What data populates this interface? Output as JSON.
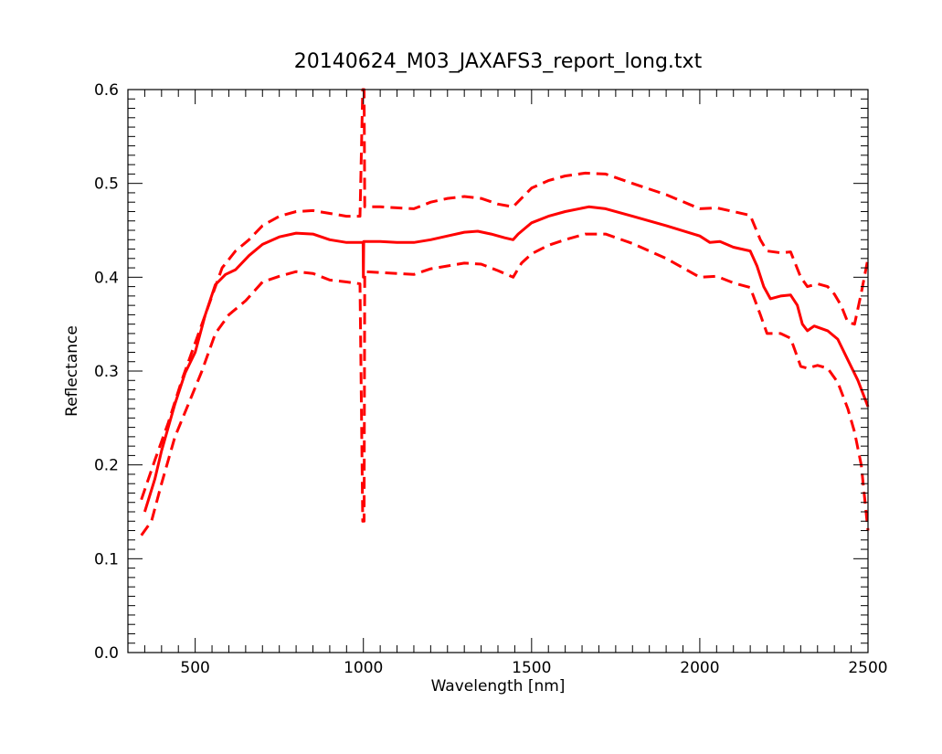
{
  "chart_data": {
    "type": "line",
    "title": "20140624_M03_JAXAFS3_report_long.txt",
    "xlabel": "Wavelength [nm]",
    "ylabel": "Reflectance",
    "xlim": [
      300,
      2500
    ],
    "ylim": [
      0.0,
      0.6
    ],
    "x_ticks": [
      "500",
      "1000",
      "1500",
      "2000",
      "2500"
    ],
    "y_ticks": [
      "0.0",
      "0.1",
      "0.2",
      "0.3",
      "0.4",
      "0.5",
      "0.6"
    ],
    "grid": false,
    "legend": "none",
    "series": [
      {
        "style": "solid",
        "color": "#ff0000",
        "points": [
          [
            350,
            0.15
          ],
          [
            380,
            0.185
          ],
          [
            400,
            0.215
          ],
          [
            440,
            0.265
          ],
          [
            470,
            0.298
          ],
          [
            500,
            0.32
          ],
          [
            530,
            0.36
          ],
          [
            560,
            0.392
          ],
          [
            590,
            0.403
          ],
          [
            620,
            0.408
          ],
          [
            660,
            0.423
          ],
          [
            700,
            0.435
          ],
          [
            750,
            0.443
          ],
          [
            800,
            0.447
          ],
          [
            850,
            0.446
          ],
          [
            900,
            0.44
          ],
          [
            950,
            0.437
          ],
          [
            999,
            0.437
          ],
          [
            1000,
            0.4
          ],
          [
            1001,
            0.438
          ],
          [
            1050,
            0.438
          ],
          [
            1100,
            0.437
          ],
          [
            1150,
            0.437
          ],
          [
            1200,
            0.44
          ],
          [
            1250,
            0.444
          ],
          [
            1300,
            0.448
          ],
          [
            1340,
            0.449
          ],
          [
            1380,
            0.446
          ],
          [
            1420,
            0.442
          ],
          [
            1445,
            0.44
          ],
          [
            1460,
            0.446
          ],
          [
            1480,
            0.452
          ],
          [
            1500,
            0.458
          ],
          [
            1550,
            0.465
          ],
          [
            1600,
            0.47
          ],
          [
            1670,
            0.475
          ],
          [
            1720,
            0.473
          ],
          [
            1800,
            0.465
          ],
          [
            1900,
            0.455
          ],
          [
            2000,
            0.444
          ],
          [
            2030,
            0.437
          ],
          [
            2060,
            0.438
          ],
          [
            2100,
            0.432
          ],
          [
            2150,
            0.428
          ],
          [
            2170,
            0.412
          ],
          [
            2190,
            0.39
          ],
          [
            2210,
            0.377
          ],
          [
            2240,
            0.38
          ],
          [
            2270,
            0.381
          ],
          [
            2290,
            0.37
          ],
          [
            2305,
            0.35
          ],
          [
            2320,
            0.343
          ],
          [
            2340,
            0.348
          ],
          [
            2380,
            0.343
          ],
          [
            2410,
            0.334
          ],
          [
            2440,
            0.312
          ],
          [
            2470,
            0.29
          ],
          [
            2500,
            0.262
          ]
        ]
      },
      {
        "style": "dashed",
        "color": "#ff0000",
        "points": [
          [
            340,
            0.163
          ],
          [
            380,
            0.205
          ],
          [
            420,
            0.245
          ],
          [
            460,
            0.29
          ],
          [
            500,
            0.33
          ],
          [
            540,
            0.37
          ],
          [
            580,
            0.41
          ],
          [
            620,
            0.428
          ],
          [
            660,
            0.44
          ],
          [
            700,
            0.455
          ],
          [
            750,
            0.465
          ],
          [
            800,
            0.47
          ],
          [
            850,
            0.471
          ],
          [
            900,
            0.468
          ],
          [
            950,
            0.465
          ],
          [
            990,
            0.465
          ],
          [
            998,
            0.6
          ],
          [
            1002,
            0.6
          ],
          [
            1004,
            0.475
          ],
          [
            1050,
            0.475
          ],
          [
            1100,
            0.474
          ],
          [
            1150,
            0.473
          ],
          [
            1200,
            0.48
          ],
          [
            1250,
            0.484
          ],
          [
            1300,
            0.486
          ],
          [
            1350,
            0.484
          ],
          [
            1400,
            0.478
          ],
          [
            1445,
            0.475
          ],
          [
            1500,
            0.495
          ],
          [
            1550,
            0.503
          ],
          [
            1600,
            0.508
          ],
          [
            1660,
            0.511
          ],
          [
            1720,
            0.51
          ],
          [
            1800,
            0.5
          ],
          [
            1900,
            0.488
          ],
          [
            2000,
            0.473
          ],
          [
            2050,
            0.474
          ],
          [
            2100,
            0.47
          ],
          [
            2150,
            0.466
          ],
          [
            2180,
            0.44
          ],
          [
            2200,
            0.428
          ],
          [
            2240,
            0.426
          ],
          [
            2270,
            0.427
          ],
          [
            2300,
            0.4
          ],
          [
            2320,
            0.39
          ],
          [
            2350,
            0.393
          ],
          [
            2380,
            0.39
          ],
          [
            2400,
            0.382
          ],
          [
            2420,
            0.37
          ],
          [
            2440,
            0.352
          ],
          [
            2460,
            0.35
          ],
          [
            2480,
            0.383
          ],
          [
            2500,
            0.42
          ]
        ]
      },
      {
        "style": "dashed",
        "color": "#ff0000",
        "points": [
          [
            340,
            0.125
          ],
          [
            370,
            0.14
          ],
          [
            400,
            0.18
          ],
          [
            440,
            0.23
          ],
          [
            480,
            0.265
          ],
          [
            520,
            0.3
          ],
          [
            560,
            0.34
          ],
          [
            600,
            0.36
          ],
          [
            650,
            0.375
          ],
          [
            700,
            0.395
          ],
          [
            750,
            0.401
          ],
          [
            800,
            0.406
          ],
          [
            850,
            0.404
          ],
          [
            900,
            0.397
          ],
          [
            950,
            0.395
          ],
          [
            990,
            0.393
          ],
          [
            998,
            0.14
          ],
          [
            1002,
            0.14
          ],
          [
            1004,
            0.406
          ],
          [
            1050,
            0.405
          ],
          [
            1100,
            0.404
          ],
          [
            1150,
            0.403
          ],
          [
            1200,
            0.409
          ],
          [
            1250,
            0.412
          ],
          [
            1300,
            0.415
          ],
          [
            1350,
            0.414
          ],
          [
            1400,
            0.407
          ],
          [
            1445,
            0.4
          ],
          [
            1470,
            0.415
          ],
          [
            1500,
            0.425
          ],
          [
            1550,
            0.434
          ],
          [
            1600,
            0.44
          ],
          [
            1660,
            0.446
          ],
          [
            1720,
            0.446
          ],
          [
            1800,
            0.436
          ],
          [
            1900,
            0.42
          ],
          [
            2000,
            0.4
          ],
          [
            2050,
            0.401
          ],
          [
            2100,
            0.394
          ],
          [
            2150,
            0.389
          ],
          [
            2180,
            0.36
          ],
          [
            2200,
            0.34
          ],
          [
            2240,
            0.34
          ],
          [
            2270,
            0.335
          ],
          [
            2300,
            0.305
          ],
          [
            2320,
            0.303
          ],
          [
            2350,
            0.306
          ],
          [
            2380,
            0.303
          ],
          [
            2410,
            0.288
          ],
          [
            2440,
            0.26
          ],
          [
            2460,
            0.235
          ],
          [
            2480,
            0.2
          ],
          [
            2500,
            0.13
          ]
        ]
      }
    ]
  }
}
